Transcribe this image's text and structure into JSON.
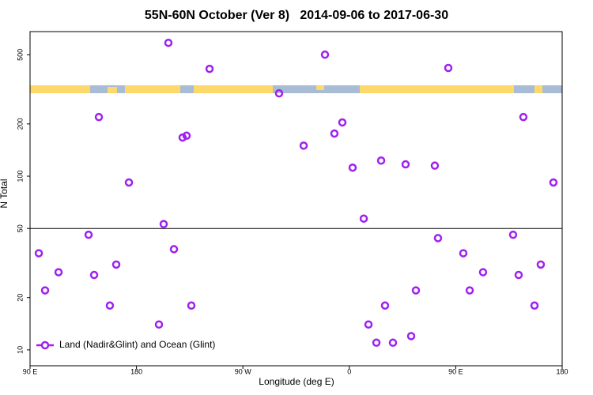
{
  "chart_data": {
    "type": "scatter",
    "title": "55N-60N October (Ver 8)   2014-09-06 to 2017-06-30",
    "x_label": "Longitude (deg E)",
    "y_label": "N Total",
    "xlim": [
      90,
      540
    ],
    "xticks": [
      {
        "value": 90,
        "label": "90 E"
      },
      180,
      {
        "value": 270,
        "label": "90 W"
      },
      {
        "value": 360,
        "label": "0"
      },
      {
        "value": 450,
        "label": "90 E"
      },
      {
        "value": 540,
        "label": "180"
      }
    ],
    "ylim": [
      8.1,
      680
    ],
    "log_y": true,
    "yticks": [
      10,
      20,
      50,
      100,
      200,
      500
    ],
    "hline": 50,
    "legend_position": "lower left",
    "series": [
      {
        "name": "Land (Nadir&Glint) and Ocean (Glint)",
        "color": "#a020f0",
        "x": [
          97.4,
          102.7,
          114.1,
          139.5,
          144.2,
          148.2,
          157.5,
          162.9,
          173.6,
          199.0,
          203.0,
          207.0,
          211.7,
          219.0,
          222.4,
          226.4,
          241.8,
          300.6,
          321.4,
          339.4,
          347.4,
          354.1,
          362.8,
          372.2,
          376.2,
          382.9,
          386.9,
          390.2,
          396.9,
          407.6,
          412.3,
          416.3,
          432.3,
          435.0,
          443.7,
          456.4,
          461.8,
          473.1,
          498.5,
          503.2,
          507.2,
          516.6,
          521.9,
          532.6
        ],
        "values": [
          36,
          22,
          28,
          46,
          27,
          219,
          18,
          31,
          92,
          14,
          53,
          586,
          38,
          167,
          171,
          18,
          415,
          300,
          150,
          501,
          176,
          204,
          112,
          57,
          14,
          11,
          123,
          18,
          11,
          117,
          12,
          22,
          115,
          44,
          420,
          36,
          22,
          28,
          46,
          27,
          219,
          18,
          31,
          92
        ]
      }
    ]
  }
}
